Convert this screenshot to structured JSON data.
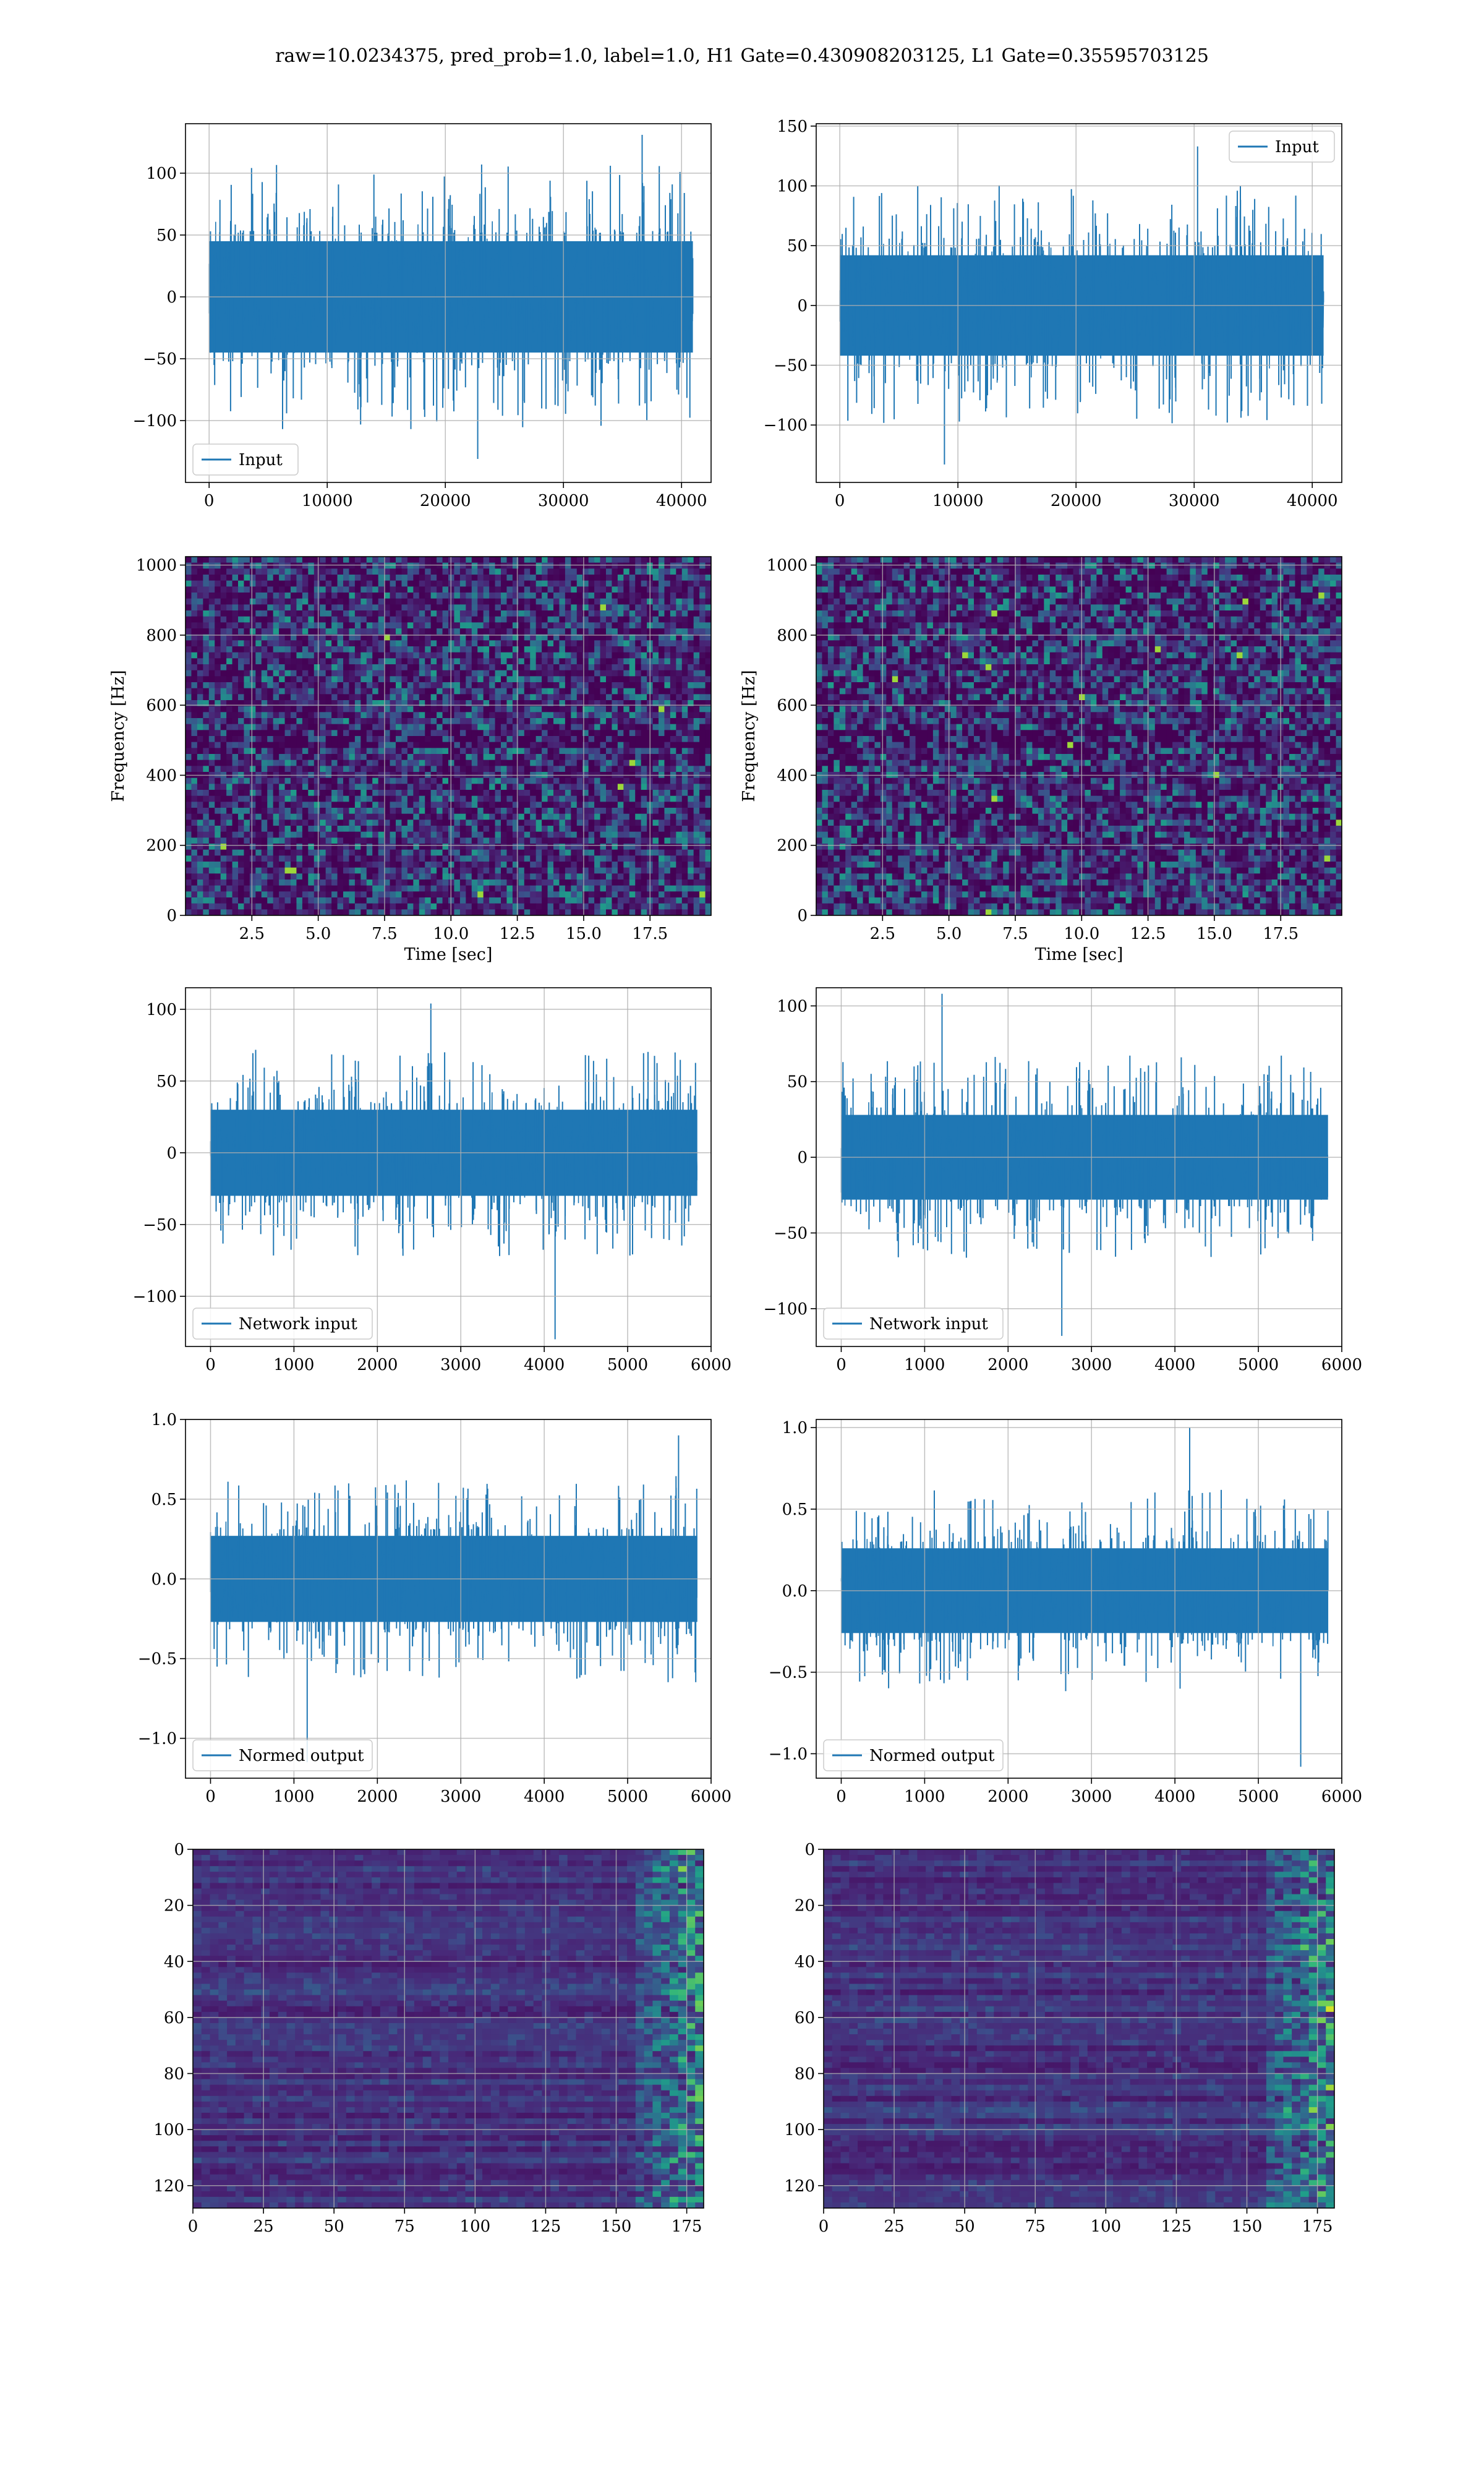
{
  "figure": {
    "title": "raw=10.0234375, pred_prob=1.0, label=1.0, H1 Gate=0.430908203125, L1 Gate=0.35595703125"
  },
  "colors": {
    "series": "#1f77b4",
    "grid": "#b0b0b0",
    "viridis": [
      "#440154",
      "#482878",
      "#3e4989",
      "#31688e",
      "#26828e",
      "#1f9e89",
      "#35b779",
      "#6ece58",
      "#b5de2b",
      "#fde725"
    ]
  },
  "chart_data": [
    {
      "type": "line",
      "panel": "row1-left",
      "legend": "Input",
      "legend_loc": "lower-left",
      "xlim": [
        -2000,
        42500
      ],
      "ylim": [
        -150,
        140
      ],
      "xticks": [
        0,
        10000,
        20000,
        30000,
        40000
      ],
      "xticklabels": [
        "0",
        "10000",
        "20000",
        "30000",
        "40000"
      ],
      "yticks": [
        -100,
        -50,
        0,
        50,
        100
      ],
      "yticklabels": [
        "−100",
        "−50",
        "0",
        "50",
        "100"
      ],
      "signal": {
        "n": 40960,
        "band": 45,
        "peak_max": 131,
        "peak_min": -131
      }
    },
    {
      "type": "line",
      "panel": "row1-right",
      "legend": "Input",
      "legend_loc": "upper-right",
      "xlim": [
        -2000,
        42500
      ],
      "ylim": [
        -148,
        152
      ],
      "xticks": [
        0,
        10000,
        20000,
        30000,
        40000
      ],
      "xticklabels": [
        "0",
        "10000",
        "20000",
        "30000",
        "40000"
      ],
      "yticks": [
        -100,
        -50,
        0,
        50,
        100,
        150
      ],
      "yticklabels": [
        "−100",
        "−50",
        "0",
        "50",
        "100",
        "150"
      ],
      "signal": {
        "n": 40960,
        "band": 42,
        "peak_max": 133,
        "peak_min": -133
      }
    },
    {
      "type": "heatmap",
      "panel": "row2-left",
      "xlabel": "Time [sec]",
      "ylabel": "Frequency [Hz]",
      "xlim": [
        0,
        19.8
      ],
      "ylim": [
        0,
        1024
      ],
      "xticks": [
        2.5,
        5,
        7.5,
        10,
        12.5,
        15,
        17.5
      ],
      "xticklabels": [
        "2.5",
        "5.0",
        "7.5",
        "10.0",
        "12.5",
        "15.0",
        "17.5"
      ],
      "yticks": [
        0,
        200,
        400,
        600,
        800,
        1000
      ],
      "yticklabels": [
        "0",
        "200",
        "400",
        "600",
        "800",
        "1000"
      ]
    },
    {
      "type": "heatmap",
      "panel": "row2-right",
      "xlabel": "Time [sec]",
      "ylabel": "Frequency [Hz]",
      "xlim": [
        0,
        19.8
      ],
      "ylim": [
        0,
        1024
      ],
      "xticks": [
        2.5,
        5,
        7.5,
        10,
        12.5,
        15,
        17.5
      ],
      "xticklabels": [
        "2.5",
        "5.0",
        "7.5",
        "10.0",
        "12.5",
        "15.0",
        "17.5"
      ],
      "yticks": [
        0,
        200,
        400,
        600,
        800,
        1000
      ],
      "yticklabels": [
        "0",
        "200",
        "400",
        "600",
        "800",
        "1000"
      ]
    },
    {
      "type": "line",
      "panel": "row3-left",
      "legend": "Network input",
      "legend_loc": "lower-left",
      "xlim": [
        -300,
        6000
      ],
      "ylim": [
        -135,
        115
      ],
      "xticks": [
        0,
        1000,
        2000,
        3000,
        4000,
        5000,
        6000
      ],
      "xticklabels": [
        "0",
        "1000",
        "2000",
        "3000",
        "4000",
        "5000",
        "6000"
      ],
      "yticks": [
        -100,
        -50,
        0,
        50,
        100
      ],
      "yticklabels": [
        "−100",
        "−50",
        "0",
        "50",
        "100"
      ],
      "signal": {
        "n": 5835,
        "band": 30,
        "peak_max": 104,
        "peak_min": -130
      }
    },
    {
      "type": "line",
      "panel": "row3-right",
      "legend": "Network input",
      "legend_loc": "lower-left",
      "xlim": [
        -300,
        6000
      ],
      "ylim": [
        -125,
        112
      ],
      "xticks": [
        0,
        1000,
        2000,
        3000,
        4000,
        5000,
        6000
      ],
      "xticklabels": [
        "0",
        "1000",
        "2000",
        "3000",
        "4000",
        "5000",
        "6000"
      ],
      "yticks": [
        -100,
        -50,
        0,
        50,
        100
      ],
      "yticklabels": [
        "−100",
        "−50",
        "0",
        "50",
        "100"
      ],
      "signal": {
        "n": 5835,
        "band": 28,
        "peak_max": 108,
        "peak_min": -118
      }
    },
    {
      "type": "line",
      "panel": "row4-left",
      "legend": "Normed output",
      "legend_loc": "lower-left",
      "xlim": [
        -300,
        6000
      ],
      "ylim": [
        -1.25,
        1.0
      ],
      "xticks": [
        0,
        1000,
        2000,
        3000,
        4000,
        5000,
        6000
      ],
      "xticklabels": [
        "0",
        "1000",
        "2000",
        "3000",
        "4000",
        "5000",
        "6000"
      ],
      "yticks": [
        -1.0,
        -0.5,
        0.0,
        0.5,
        1.0
      ],
      "yticklabels": [
        "−1.0",
        "−0.5",
        "0.0",
        "0.5",
        "1.0"
      ],
      "signal": {
        "n": 5835,
        "band": 0.27,
        "peak_max": 0.9,
        "peak_min": -1.15
      }
    },
    {
      "type": "line",
      "panel": "row4-right",
      "legend": "Normed output",
      "legend_loc": "lower-left",
      "xlim": [
        -300,
        6000
      ],
      "ylim": [
        -1.15,
        1.05
      ],
      "xticks": [
        0,
        1000,
        2000,
        3000,
        4000,
        5000,
        6000
      ],
      "xticklabels": [
        "0",
        "1000",
        "2000",
        "3000",
        "4000",
        "5000",
        "6000"
      ],
      "yticks": [
        -1.0,
        -0.5,
        0.0,
        0.5,
        1.0
      ],
      "yticklabels": [
        "−1.0",
        "−0.5",
        "0.0",
        "0.5",
        "1.0"
      ],
      "signal": {
        "n": 5835,
        "band": 0.26,
        "peak_max": 1.0,
        "peak_min": -1.08
      }
    },
    {
      "type": "heatmap",
      "panel": "row5-left",
      "xlim": [
        0,
        181
      ],
      "ylim": [
        128,
        0
      ],
      "yaxis": "inverted",
      "xticks": [
        0,
        25,
        50,
        75,
        100,
        125,
        150,
        175
      ],
      "xticklabels": [
        "0",
        "25",
        "50",
        "75",
        "100",
        "125",
        "150",
        "175"
      ],
      "yticks": [
        0,
        20,
        40,
        60,
        80,
        100,
        120
      ],
      "yticklabels": [
        "0",
        "20",
        "40",
        "60",
        "80",
        "100",
        "120"
      ]
    },
    {
      "type": "heatmap",
      "panel": "row5-right",
      "xlim": [
        0,
        181
      ],
      "ylim": [
        128,
        0
      ],
      "yaxis": "inverted",
      "xticks": [
        0,
        25,
        50,
        75,
        100,
        125,
        150,
        175
      ],
      "xticklabels": [
        "0",
        "25",
        "50",
        "75",
        "100",
        "125",
        "150",
        "175"
      ],
      "yticks": [
        0,
        20,
        40,
        60,
        80,
        100,
        120
      ],
      "yticklabels": [
        "0",
        "20",
        "40",
        "60",
        "80",
        "100",
        "120"
      ]
    }
  ]
}
